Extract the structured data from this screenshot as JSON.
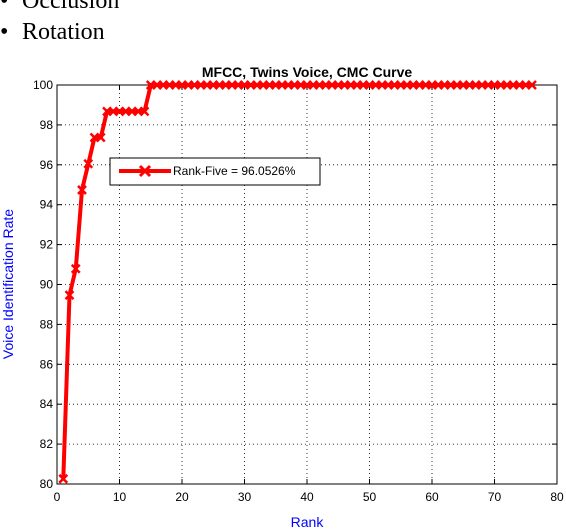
{
  "bullets": [
    "Occlusion",
    "Rotation"
  ],
  "bullet_symbol": "•",
  "chart_data": {
    "type": "line",
    "title": "MFCC, Twins Voice, CMC Curve",
    "xlabel": "Rank",
    "ylabel": "Voice Identification Rate",
    "xlim": [
      0,
      80
    ],
    "ylim": [
      80,
      100
    ],
    "xticks": [
      0,
      10,
      20,
      30,
      40,
      50,
      60,
      70,
      80
    ],
    "yticks": [
      80,
      82,
      84,
      86,
      88,
      90,
      92,
      94,
      96,
      98,
      100
    ],
    "grid": true,
    "legend_position": "upper-left",
    "series": [
      {
        "name": "Rank-Five = 96.0526%",
        "color": "#ff0000",
        "marker": "x",
        "x": [
          1,
          2,
          3,
          4,
          5,
          6,
          7,
          8,
          9,
          10,
          11,
          12,
          13,
          14,
          15,
          16,
          17,
          18,
          19,
          20,
          21,
          22,
          23,
          24,
          25,
          26,
          27,
          28,
          29,
          30,
          31,
          32,
          33,
          34,
          35,
          36,
          37,
          38,
          39,
          40,
          41,
          42,
          43,
          44,
          45,
          46,
          47,
          48,
          49,
          50,
          51,
          52,
          53,
          54,
          55,
          56,
          57,
          58,
          59,
          60,
          61,
          62,
          63,
          64,
          65,
          66,
          67,
          68,
          69,
          70,
          71,
          72,
          73,
          74,
          75,
          76
        ],
        "y": [
          80.26,
          89.47,
          90.79,
          94.74,
          96.05,
          97.37,
          97.37,
          98.68,
          98.68,
          98.68,
          98.68,
          98.68,
          98.68,
          98.68,
          100,
          100,
          100,
          100,
          100,
          100,
          100,
          100,
          100,
          100,
          100,
          100,
          100,
          100,
          100,
          100,
          100,
          100,
          100,
          100,
          100,
          100,
          100,
          100,
          100,
          100,
          100,
          100,
          100,
          100,
          100,
          100,
          100,
          100,
          100,
          100,
          100,
          100,
          100,
          100,
          100,
          100,
          100,
          100,
          100,
          100,
          100,
          100,
          100,
          100,
          100,
          100,
          100,
          100,
          100,
          100,
          100,
          100,
          100,
          100,
          100,
          100
        ]
      }
    ]
  }
}
